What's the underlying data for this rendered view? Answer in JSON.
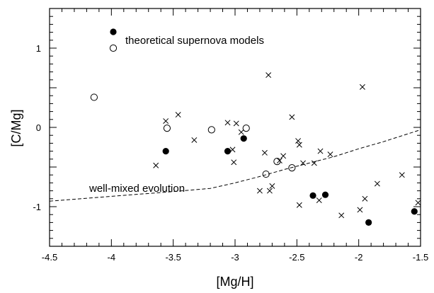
{
  "chart_data": {
    "type": "scatter",
    "title": "",
    "xlabel": "[Mg/H]",
    "ylabel": "[C/Mg]",
    "xlim": [
      -4.5,
      -1.5
    ],
    "ylim": [
      -1.5,
      1.5
    ],
    "x_ticks": [
      -4.5,
      -4,
      -3.5,
      -3,
      -2.5,
      -2,
      -1.5
    ],
    "x_tick_labels": [
      "-4.5",
      "-4",
      "-3.5",
      "-3",
      "-2.5",
      "-2",
      "-1.5"
    ],
    "y_ticks": [
      1,
      0,
      -1
    ],
    "y_tick_labels": [
      "1",
      "0",
      "-1"
    ],
    "grid": false,
    "legend": {
      "placement": "top-left",
      "entries": [
        "theoretical supernova models"
      ]
    },
    "series": [
      {
        "marker": "filled-circle",
        "points": [
          {
            "x": -3.56,
            "y": -0.3
          },
          {
            "x": -3.06,
            "y": -0.3
          },
          {
            "x": -2.93,
            "y": -0.14
          },
          {
            "x": -2.37,
            "y": -0.86
          },
          {
            "x": -2.27,
            "y": -0.85
          },
          {
            "x": -1.92,
            "y": -1.2
          },
          {
            "x": -1.55,
            "y": -1.06
          }
        ]
      },
      {
        "name": "theoretical supernova models",
        "marker": "open-circle",
        "points": [
          {
            "x": -4.14,
            "y": 0.38
          },
          {
            "x": -3.55,
            "y": -0.01
          },
          {
            "x": -3.19,
            "y": -0.03
          },
          {
            "x": -2.91,
            "y": -0.01
          },
          {
            "x": -2.75,
            "y": -0.59
          },
          {
            "x": -2.66,
            "y": -0.43
          },
          {
            "x": -2.54,
            "y": -0.51
          }
        ]
      },
      {
        "marker": "cross",
        "points": [
          {
            "x": -3.64,
            "y": -0.48
          },
          {
            "x": -3.56,
            "y": 0.08
          },
          {
            "x": -3.46,
            "y": 0.16
          },
          {
            "x": -3.33,
            "y": -0.16
          },
          {
            "x": -3.06,
            "y": 0.06
          },
          {
            "x": -3.02,
            "y": -0.28
          },
          {
            "x": -3.01,
            "y": -0.44
          },
          {
            "x": -2.99,
            "y": 0.05
          },
          {
            "x": -2.95,
            "y": -0.06
          },
          {
            "x": -2.8,
            "y": -0.8
          },
          {
            "x": -2.76,
            "y": -0.32
          },
          {
            "x": -2.73,
            "y": 0.66
          },
          {
            "x": -2.72,
            "y": -0.8
          },
          {
            "x": -2.7,
            "y": -0.74
          },
          {
            "x": -2.64,
            "y": -0.42
          },
          {
            "x": -2.61,
            "y": -0.36
          },
          {
            "x": -2.54,
            "y": 0.13
          },
          {
            "x": -2.49,
            "y": -0.17
          },
          {
            "x": -2.48,
            "y": -0.22
          },
          {
            "x": -2.48,
            "y": -0.98
          },
          {
            "x": -2.45,
            "y": -0.45
          },
          {
            "x": -2.36,
            "y": -0.45
          },
          {
            "x": -2.32,
            "y": -0.92
          },
          {
            "x": -2.31,
            "y": -0.3
          },
          {
            "x": -2.23,
            "y": -0.34
          },
          {
            "x": -2.14,
            "y": -1.11
          },
          {
            "x": -1.99,
            "y": -1.04
          },
          {
            "x": -1.97,
            "y": 0.51
          },
          {
            "x": -1.95,
            "y": -0.9
          },
          {
            "x": -1.85,
            "y": -0.71
          },
          {
            "x": -1.65,
            "y": -0.6
          },
          {
            "x": -1.52,
            "y": -0.95
          }
        ]
      },
      {
        "name": "well-mixed evolution",
        "marker": "dashed-line",
        "points": [
          {
            "x": -4.5,
            "y": -0.93
          },
          {
            "x": -4.0,
            "y": -0.87
          },
          {
            "x": -3.5,
            "y": -0.81
          },
          {
            "x": -3.2,
            "y": -0.77
          },
          {
            "x": -3.0,
            "y": -0.7
          },
          {
            "x": -2.8,
            "y": -0.62
          },
          {
            "x": -2.6,
            "y": -0.53
          },
          {
            "x": -2.4,
            "y": -0.45
          },
          {
            "x": -2.2,
            "y": -0.37
          },
          {
            "x": -2.0,
            "y": -0.27
          },
          {
            "x": -1.8,
            "y": -0.18
          },
          {
            "x": -1.6,
            "y": -0.08
          },
          {
            "x": -1.5,
            "y": -0.03
          }
        ]
      }
    ],
    "annotations": [
      {
        "text": "well-mixed evolution",
        "x": -4.35,
        "y": -0.8
      }
    ]
  }
}
